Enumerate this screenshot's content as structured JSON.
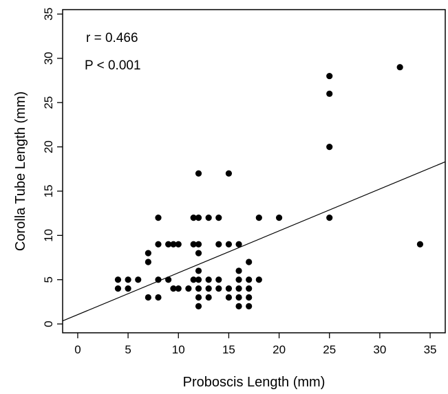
{
  "chart_data": {
    "type": "scatter",
    "xlabel": "Proboscis Length (mm)",
    "ylabel": "Corolla Tube Length (mm)",
    "xlim": [
      -1.5,
      36.5
    ],
    "ylim": [
      -1,
      35.5
    ],
    "xticks": [
      0,
      5,
      10,
      15,
      20,
      25,
      30,
      35
    ],
    "yticks": [
      0,
      5,
      10,
      15,
      20,
      25,
      30,
      35
    ],
    "grid": false,
    "annotations": [
      "r = 0.466",
      "P < 0.001"
    ],
    "points": [
      [
        4,
        5
      ],
      [
        4,
        4
      ],
      [
        5,
        5
      ],
      [
        5,
        4
      ],
      [
        6,
        5
      ],
      [
        7,
        8
      ],
      [
        7,
        7
      ],
      [
        7,
        3
      ],
      [
        8,
        12
      ],
      [
        8,
        9
      ],
      [
        8,
        5
      ],
      [
        8,
        3
      ],
      [
        9,
        9
      ],
      [
        9,
        5
      ],
      [
        9.5,
        9
      ],
      [
        9.5,
        4
      ],
      [
        10,
        9
      ],
      [
        10,
        4
      ],
      [
        11,
        4
      ],
      [
        11.5,
        12
      ],
      [
        11.5,
        9
      ],
      [
        11.5,
        5
      ],
      [
        12,
        17
      ],
      [
        12,
        12
      ],
      [
        12,
        9
      ],
      [
        12,
        8
      ],
      [
        12,
        6
      ],
      [
        12,
        5
      ],
      [
        12,
        4
      ],
      [
        12,
        3
      ],
      [
        12,
        2
      ],
      [
        13,
        12
      ],
      [
        13,
        5
      ],
      [
        13,
        4
      ],
      [
        13,
        3
      ],
      [
        14,
        12
      ],
      [
        14,
        9
      ],
      [
        14,
        5
      ],
      [
        14,
        4
      ],
      [
        15,
        17
      ],
      [
        15,
        9
      ],
      [
        15,
        4
      ],
      [
        15,
        3
      ],
      [
        16,
        9
      ],
      [
        16,
        6
      ],
      [
        16,
        5
      ],
      [
        16,
        4
      ],
      [
        16,
        3
      ],
      [
        16,
        2
      ],
      [
        17,
        7
      ],
      [
        17,
        5
      ],
      [
        17,
        4
      ],
      [
        17,
        3
      ],
      [
        17,
        2
      ],
      [
        18,
        12
      ],
      [
        18,
        5
      ],
      [
        20,
        12
      ],
      [
        25,
        28
      ],
      [
        25,
        26
      ],
      [
        25,
        20
      ],
      [
        25,
        12
      ],
      [
        32,
        29
      ],
      [
        34,
        9
      ]
    ],
    "trendline": {
      "slope": 0.473,
      "intercept": 1.05
    },
    "colors": {
      "points": "#000000",
      "line": "#000000",
      "axes": "#000000"
    }
  }
}
